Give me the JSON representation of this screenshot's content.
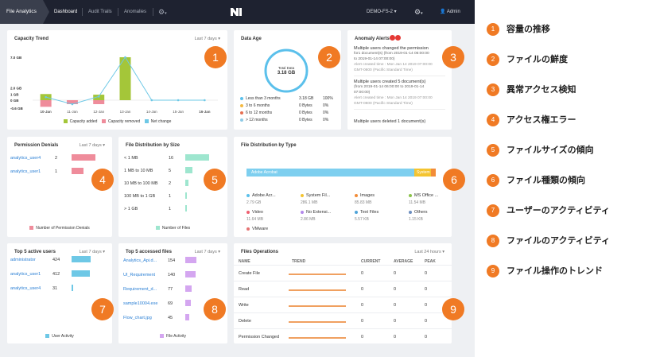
{
  "topbar": {
    "app_title": "File Analytics",
    "tabs": [
      "Dashboard",
      "Audit Trails",
      "Anomalies"
    ],
    "server": "DEMO-FS-2",
    "user": "Admin"
  },
  "capacity": {
    "title": "Capacity Trend",
    "filter": "Last 7 days",
    "y_labels": [
      "7.0 GB",
      "2.0 GB",
      "1 GB",
      "0 GB",
      "-0.6 GB"
    ],
    "x_labels": [
      "10-Jan",
      "11-Jan",
      "12-Jan",
      "13-Jan",
      "14-Jan",
      "15-Jan",
      "16-Jan"
    ],
    "legend": [
      "Capacity added",
      "Capacity removed",
      "Net change"
    ],
    "colors": {
      "added": "#a4c639",
      "removed": "#ef8c9b",
      "net": "#6ec8e6"
    }
  },
  "chart_data": {
    "type": "bar",
    "categories": [
      "10-Jan",
      "11-Jan",
      "12-Jan",
      "13-Jan",
      "14-Jan",
      "15-Jan",
      "16-Jan"
    ],
    "series": [
      {
        "name": "Capacity added",
        "values": [
          1.0,
          0.0,
          0.9,
          7.0,
          0.0,
          0.0,
          0.0
        ]
      },
      {
        "name": "Capacity removed",
        "values": [
          -0.5,
          -0.3,
          -0.3,
          0.0,
          0.0,
          0.0,
          0.0
        ]
      },
      {
        "name": "Net change",
        "values": [
          0.5,
          -0.3,
          0.6,
          7.0,
          0.0,
          0.0,
          0.0
        ]
      }
    ],
    "ylim": [
      -0.6,
      7.0
    ]
  },
  "age": {
    "title": "Data Age",
    "total_label": "Total Data",
    "total_value": "3.18 GB",
    "rows": [
      {
        "label": "Less than 3 months",
        "size": "3.18 GB",
        "pct": "100%",
        "color": "#5bc0eb"
      },
      {
        "label": "3 to 6 months",
        "size": "0 Bytes",
        "pct": "0%",
        "color": "#f4b942"
      },
      {
        "label": "6 to 12 months",
        "size": "0 Bytes",
        "pct": "0%",
        "color": "#e76f51"
      },
      {
        "label": "> 12 months",
        "size": "0 Bytes",
        "pct": "0%",
        "color": "#8ecae6"
      }
    ]
  },
  "anomaly": {
    "title": "Anomaly Alerts",
    "items": [
      {
        "l1": "Multiple users changed the permission",
        "l2": "for1 document(s) (from 2019-01-14 06:00:00",
        "l3": "to 2019-01-14 07:00:00)",
        "l4": "Alert created time : Mon Jan 14 2019 07:00:00",
        "l5": "GMT-0800 (Pacific Standard Time)"
      },
      {
        "l1": "Multiple users created 5 document(s)",
        "l2": "(from 2019-01-14 06:00:00 to 2019-01-14",
        "l3": "07:00:00)",
        "l4": "Alert created time : Mon Jan 14 2019 07:00:00",
        "l5": "GMT-0800 (Pacific Standard Time)"
      },
      {
        "l1": "Multiple users deleted 1 document(s)",
        "l2": "",
        "l3": "",
        "l4": "",
        "l5": ""
      }
    ]
  },
  "perm": {
    "title": "Permission Denials",
    "filter": "Last 7 days",
    "rows": [
      {
        "user": "analytics_user4",
        "count": "2"
      },
      {
        "user": "analytics_user1",
        "count": "1"
      }
    ],
    "legend": "Number of Permission Denials"
  },
  "dist": {
    "title": "File Distribution by Size",
    "rows": [
      {
        "label": "< 1 MB",
        "count": "16"
      },
      {
        "label": "1 MB to 10 MB",
        "count": "5"
      },
      {
        "label": "10 MB to 100 MB",
        "count": "2"
      },
      {
        "label": "100 MB to 1 GB",
        "count": "1"
      },
      {
        "label": "> 1 GB",
        "count": "1"
      }
    ],
    "legend": "Number of Files"
  },
  "types": {
    "title": "File Distribution by Type",
    "bar_labels": [
      "Adobe Acrobat",
      "System"
    ],
    "items": [
      {
        "name": "Adobe Acr...",
        "size": "2.79 GB",
        "color": "#5bc0eb"
      },
      {
        "name": "System Fil...",
        "size": "286.1 MB",
        "color": "#f4c430"
      },
      {
        "name": "Images",
        "size": "85.83 MB",
        "color": "#f28c38"
      },
      {
        "name": "MS Office ...",
        "size": "11.54 MB",
        "color": "#8bc34a"
      },
      {
        "name": "Video",
        "size": "11.64 MB",
        "color": "#ef5f70"
      },
      {
        "name": "No Extensi...",
        "size": "2.86 MB",
        "color": "#b388eb"
      },
      {
        "name": "Text Files",
        "size": "5.57 KB",
        "color": "#4fa3d8"
      },
      {
        "name": "Others",
        "size": "1.15 KB",
        "color": "#6c8ebf"
      },
      {
        "name": "VMware",
        "size": "",
        "color": "#e57373"
      }
    ]
  },
  "users": {
    "title": "Top 5 active users",
    "filter": "Last 7 days",
    "rows": [
      {
        "user": "administrator",
        "count": "424"
      },
      {
        "user": "analytics_user1",
        "count": "412"
      },
      {
        "user": "analytics_user4",
        "count": "31"
      }
    ],
    "legend": "User Activity"
  },
  "files": {
    "title": "Top 5 accessed files",
    "filter": "Last 7 days",
    "rows": [
      {
        "name": "Analytics_Api.d...",
        "count": "154"
      },
      {
        "name": "UI_Requirement",
        "count": "140"
      },
      {
        "name": "Requirement_d...",
        "count": "77"
      },
      {
        "name": "sample10004.exe",
        "count": "69"
      },
      {
        "name": "Flow_chart.jpg",
        "count": "45"
      }
    ],
    "legend": "File Activity"
  },
  "ops": {
    "title": "Files Operations",
    "filter": "Last 24 hours",
    "headers": [
      "NAME",
      "TREND",
      "CURRENT",
      "AVERAGE",
      "PEAK"
    ],
    "rows": [
      {
        "name": "Create File",
        "current": "0",
        "average": "0",
        "peak": "0"
      },
      {
        "name": "Read",
        "current": "0",
        "average": "0",
        "peak": "0"
      },
      {
        "name": "Write",
        "current": "0",
        "average": "0",
        "peak": "0"
      },
      {
        "name": "Delete",
        "current": "0",
        "average": "0",
        "peak": "0"
      },
      {
        "name": "Permission Changed",
        "current": "0",
        "average": "0",
        "peak": "0"
      }
    ]
  },
  "annotations": [
    "容量の推移",
    "ファイルの鮮度",
    "異常アクセス検知",
    "アクセス権エラー",
    "ファイルサイズの傾向",
    "ファイル種類の傾向",
    "ユーザーのアクティビティ",
    "ファイルのアクティビティ",
    "ファイル操作のトレンド"
  ],
  "badge_numbers": [
    "1",
    "2",
    "3",
    "4",
    "5",
    "6",
    "7",
    "8",
    "9"
  ]
}
